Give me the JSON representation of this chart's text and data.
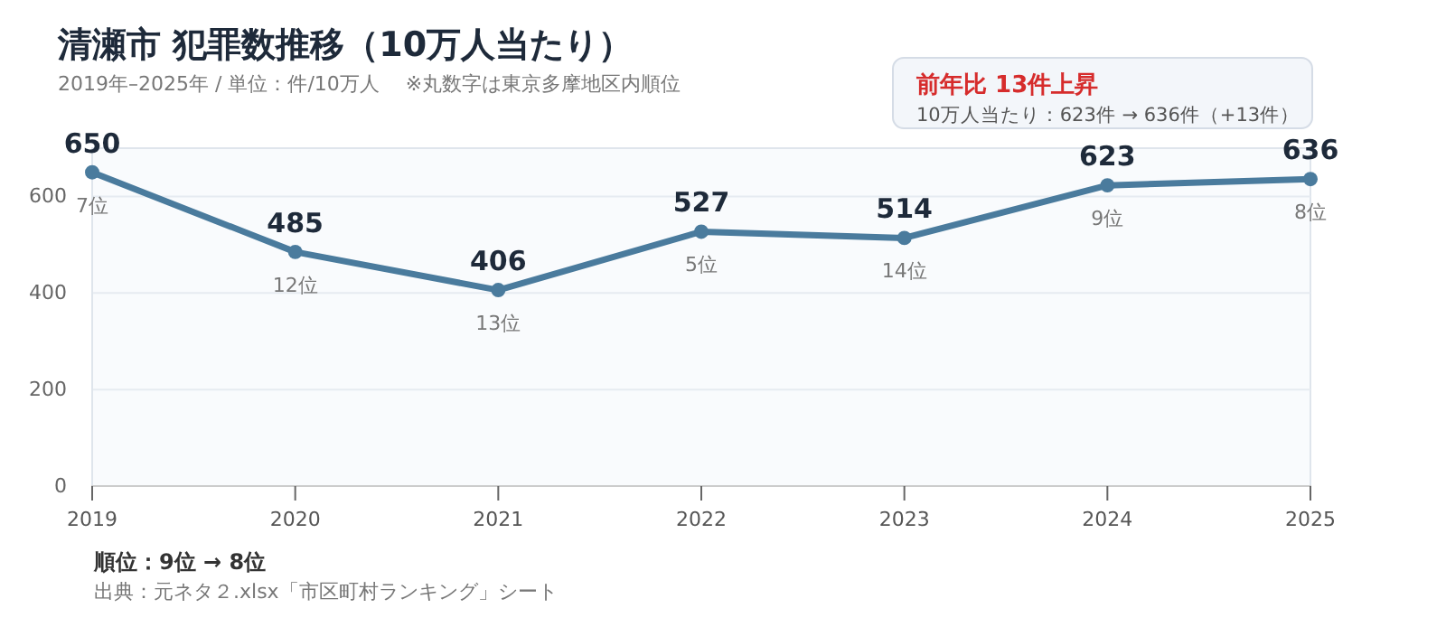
{
  "chart_data": {
    "type": "line",
    "title": "清瀬市  犯罪数推移（10万人当たり）",
    "subtitle": "2019年–2025年 / 単位：件/10万人　 ※丸数字は東京多摩地区内順位",
    "categories": [
      "2019",
      "2020",
      "2021",
      "2022",
      "2023",
      "2024",
      "2025"
    ],
    "series": [
      {
        "color": "#4a7b9d",
        "values": [
          650,
          485,
          406,
          527,
          514,
          623,
          636
        ]
      }
    ],
    "ylim": [
      0,
      700
    ],
    "yticks": [
      0,
      200,
      400,
      600
    ],
    "grid": "y",
    "marker": "circle",
    "line_style": "solid",
    "data_labels": true,
    "annotations": [
      "前年比  13件上昇",
      "10万人当たり：623件 → 636件（+13件）",
      "順位：9位 → 8位",
      "出典：元ネタ２.xlsx「市区町村ランキング」シート",
      {
        "text": "7位",
        "x": "2019",
        "y": 650
      },
      {
        "text": "12位",
        "x": "2020",
        "y": 485
      },
      {
        "text": "13位",
        "x": "2021",
        "y": 406
      },
      {
        "text": "5位",
        "x": "2022",
        "y": 527
      },
      {
        "text": "14位",
        "x": "2023",
        "y": 514
      },
      {
        "text": "9位",
        "x": "2024",
        "y": 623
      },
      {
        "text": "8位",
        "x": "2025",
        "y": 636
      }
    ]
  }
}
